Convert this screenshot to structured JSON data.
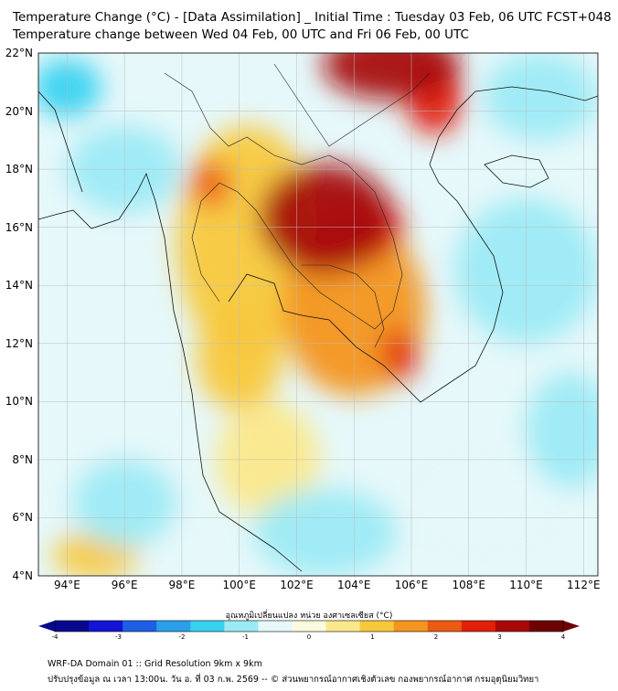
{
  "title": {
    "line1": "Temperature Change (°C) - [Data Assimilation] _ Initial Time : Tuesday 03 Feb, 06 UTC FCST+048",
    "line2": "Temperature change between Wed 04 Feb, 00 UTC and Fri 06 Feb, 00 UTC"
  },
  "map": {
    "lat_labels": [
      "22°N",
      "20°N",
      "18°N",
      "16°N",
      "14°N",
      "12°N",
      "10°N",
      "8°N",
      "6°N",
      "4°N"
    ],
    "lon_labels": [
      "94°E",
      "96°E",
      "98°E",
      "100°E",
      "102°E",
      "104°E",
      "106°E",
      "108°E",
      "110°E",
      "112°E"
    ],
    "lat_range": [
      4,
      22
    ],
    "lon_range": [
      93,
      112.5
    ],
    "field_blobs": [
      {
        "lon": 103.0,
        "lat": 16.3,
        "rx": 2.3,
        "ry": 1.9,
        "value": 3.4
      },
      {
        "lon": 104.2,
        "lat": 16.0,
        "rx": 1.5,
        "ry": 1.2,
        "value": 3.0
      },
      {
        "lon": 105.3,
        "lat": 21.6,
        "rx": 2.4,
        "ry": 1.2,
        "value": 3.2
      },
      {
        "lon": 106.8,
        "lat": 20.5,
        "rx": 1.0,
        "ry": 1.3,
        "value": 2.8
      },
      {
        "lon": 105.6,
        "lat": 11.6,
        "rx": 0.6,
        "ry": 0.9,
        "value": 2.6
      },
      {
        "lon": 104.0,
        "lat": 13.2,
        "rx": 2.5,
        "ry": 3.0,
        "value": 1.6
      },
      {
        "lon": 100.3,
        "lat": 15.5,
        "rx": 2.5,
        "ry": 4.0,
        "value": 1.3
      },
      {
        "lon": 99.0,
        "lat": 17.5,
        "rx": 0.7,
        "ry": 0.8,
        "value": 2.2
      },
      {
        "lon": 100.0,
        "lat": 11.5,
        "rx": 1.5,
        "ry": 1.8,
        "value": 0.9
      },
      {
        "lon": 101.0,
        "lat": 8.0,
        "rx": 1.8,
        "ry": 2.0,
        "value": 0.5
      },
      {
        "lon": 95.0,
        "lat": 4.7,
        "rx": 1.5,
        "ry": 0.8,
        "value": 1.2
      },
      {
        "lon": 94.0,
        "lat": 20.8,
        "rx": 1.2,
        "ry": 1.0,
        "value": -2.0
      },
      {
        "lon": 96.0,
        "lat": 18.0,
        "rx": 2.0,
        "ry": 1.5,
        "value": -1.4
      },
      {
        "lon": 101.5,
        "lat": 14.2,
        "rx": 0.6,
        "ry": 0.5,
        "value": -0.9
      },
      {
        "lon": 110.5,
        "lat": 20.5,
        "rx": 2.0,
        "ry": 1.5,
        "value": -1.2
      },
      {
        "lon": 110.0,
        "lat": 14.5,
        "rx": 2.5,
        "ry": 2.5,
        "value": -1.3
      },
      {
        "lon": 111.5,
        "lat": 9.0,
        "rx": 1.5,
        "ry": 2.0,
        "value": -1.1
      },
      {
        "lon": 96.0,
        "lat": 6.5,
        "rx": 1.8,
        "ry": 1.5,
        "value": -1.2
      },
      {
        "lon": 103.0,
        "lat": 5.5,
        "rx": 2.5,
        "ry": 1.5,
        "value": -1.0
      },
      {
        "lon": 108.5,
        "lat": 6.5,
        "rx": 2.5,
        "ry": 1.5,
        "value": -0.8
      }
    ]
  },
  "colorbar": {
    "title": "อุณหภูมิเปลี่ยนแปลง หน่วย องศาเซลเซียส (°C)",
    "ticks": [
      "-4",
      "-3",
      "-2",
      "-1",
      "0",
      "1",
      "2",
      "3",
      "4"
    ],
    "min": -4,
    "max": 4,
    "colors": [
      "#08088f",
      "#1414d6",
      "#1e5fe6",
      "#2aa0ea",
      "#36d2f0",
      "#9ceaf4",
      "#e6f8fa",
      "#fbfadf",
      "#fbe88a",
      "#f8c83c",
      "#f39520",
      "#ec5a12",
      "#e1200a",
      "#a80808",
      "#6e0202"
    ]
  },
  "footer": {
    "line1": "WRF-DA Domain 01 :: Grid Resolution 9km x 9km",
    "line2": "ปรับปรุงข้อมูล ณ เวลา 13:00น. วัน อ. ที่ 03 ก.พ. 2569 -- © ส่วนพยากรณ์อากาศเชิงตัวเลข กองพยากรณ์อากาศ กรมอุตุนิยมวิทยา"
  }
}
